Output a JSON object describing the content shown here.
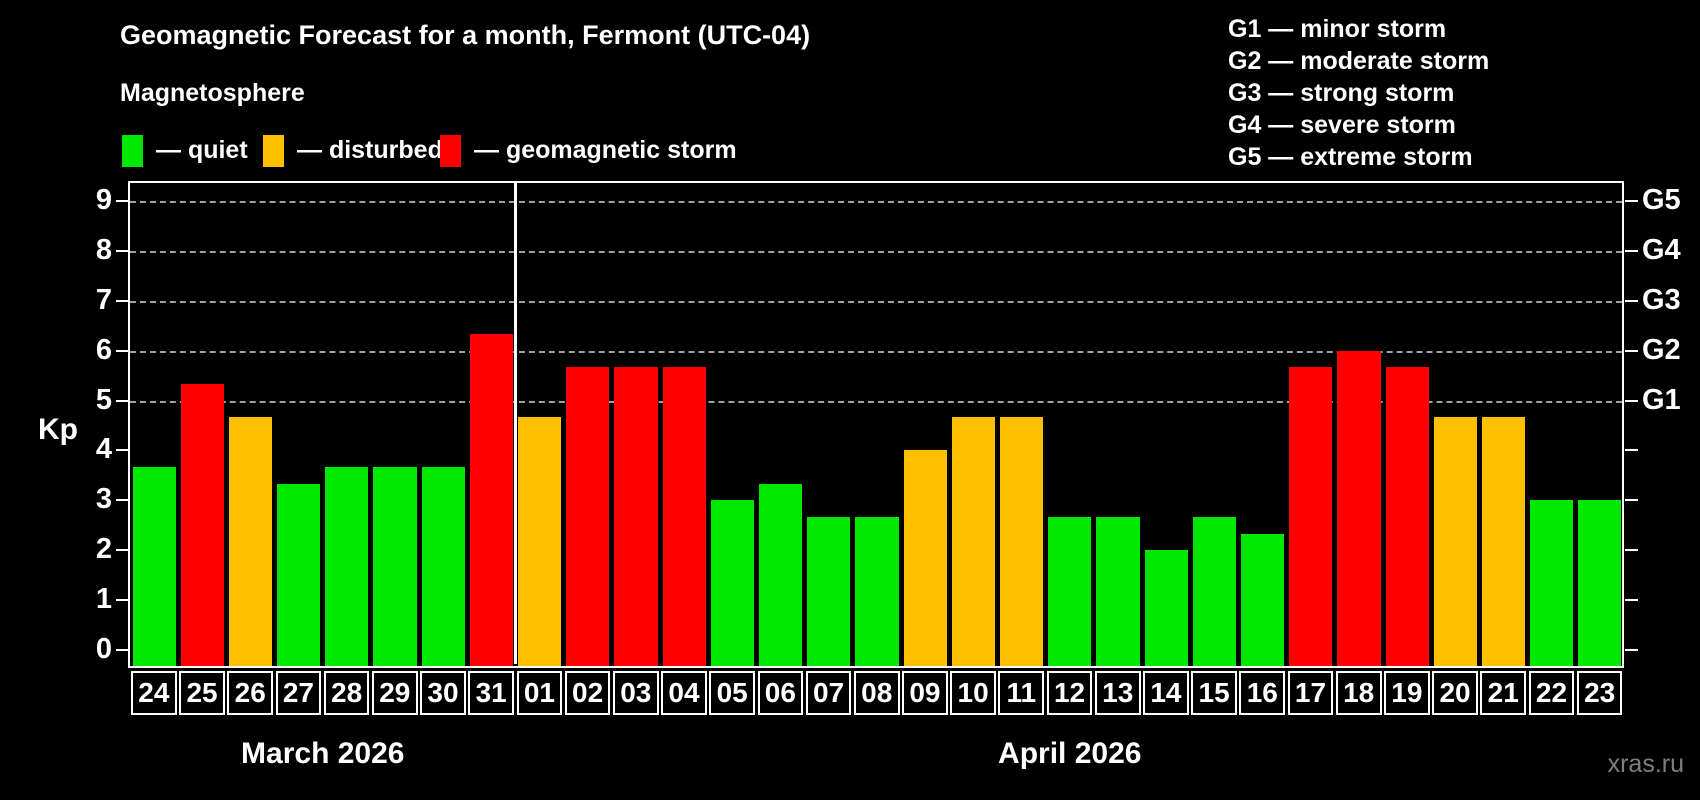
{
  "title": "Geomagnetic Forecast for a month, Fermont (UTC-04)",
  "subtitle": "Magnetosphere",
  "legend": [
    {
      "name": "quiet",
      "label": "— quiet",
      "color": "#00e800"
    },
    {
      "name": "disturbed",
      "label": "— disturbed",
      "color": "#ffc000"
    },
    {
      "name": "storm",
      "label": "— geomagnetic storm",
      "color": "#ff0000"
    }
  ],
  "g_scale_legend": [
    "G1 — minor storm",
    "G2 — moderate storm",
    "G3 — strong storm",
    "G4 — severe storm",
    "G5 — extreme storm"
  ],
  "watermark": "xras.ru",
  "chart_data": {
    "type": "bar",
    "ylabel": "Kp",
    "ylim": [
      0,
      9
    ],
    "yticks": [
      0,
      1,
      2,
      3,
      4,
      5,
      6,
      7,
      8,
      9
    ],
    "gridline_levels": [
      5,
      6,
      7,
      8,
      9
    ],
    "right_axis_labels": [
      {
        "kp": 5,
        "label": "G1"
      },
      {
        "kp": 6,
        "label": "G2"
      },
      {
        "kp": 7,
        "label": "G3"
      },
      {
        "kp": 8,
        "label": "G4"
      },
      {
        "kp": 9,
        "label": "G5"
      }
    ],
    "level_colors": {
      "quiet": "#00e800",
      "disturbed": "#ffc000",
      "storm": "#ff0000"
    },
    "months": [
      {
        "label": "March 2026",
        "days": 8
      },
      {
        "label": "April 2026",
        "days": 23
      }
    ],
    "bars": [
      {
        "day": "24",
        "kp": 3.67,
        "level": "quiet"
      },
      {
        "day": "25",
        "kp": 5.33,
        "level": "storm"
      },
      {
        "day": "26",
        "kp": 4.67,
        "level": "disturbed"
      },
      {
        "day": "27",
        "kp": 3.33,
        "level": "quiet"
      },
      {
        "day": "28",
        "kp": 3.67,
        "level": "quiet"
      },
      {
        "day": "29",
        "kp": 3.67,
        "level": "quiet"
      },
      {
        "day": "30",
        "kp": 3.67,
        "level": "quiet"
      },
      {
        "day": "31",
        "kp": 6.33,
        "level": "storm"
      },
      {
        "day": "01",
        "kp": 4.67,
        "level": "disturbed"
      },
      {
        "day": "02",
        "kp": 5.67,
        "level": "storm"
      },
      {
        "day": "03",
        "kp": 5.67,
        "level": "storm"
      },
      {
        "day": "04",
        "kp": 5.67,
        "level": "storm"
      },
      {
        "day": "05",
        "kp": 3.0,
        "level": "quiet"
      },
      {
        "day": "06",
        "kp": 3.33,
        "level": "quiet"
      },
      {
        "day": "07",
        "kp": 2.67,
        "level": "quiet"
      },
      {
        "day": "08",
        "kp": 2.67,
        "level": "quiet"
      },
      {
        "day": "09",
        "kp": 4.0,
        "level": "disturbed"
      },
      {
        "day": "10",
        "kp": 4.67,
        "level": "disturbed"
      },
      {
        "day": "11",
        "kp": 4.67,
        "level": "disturbed"
      },
      {
        "day": "12",
        "kp": 2.67,
        "level": "quiet"
      },
      {
        "day": "13",
        "kp": 2.67,
        "level": "quiet"
      },
      {
        "day": "14",
        "kp": 2.0,
        "level": "quiet"
      },
      {
        "day": "15",
        "kp": 2.67,
        "level": "quiet"
      },
      {
        "day": "16",
        "kp": 2.33,
        "level": "quiet"
      },
      {
        "day": "17",
        "kp": 5.67,
        "level": "storm"
      },
      {
        "day": "18",
        "kp": 6.0,
        "level": "storm"
      },
      {
        "day": "19",
        "kp": 5.67,
        "level": "storm"
      },
      {
        "day": "20",
        "kp": 4.67,
        "level": "disturbed"
      },
      {
        "day": "21",
        "kp": 4.67,
        "level": "disturbed"
      },
      {
        "day": "22",
        "kp": 3.0,
        "level": "quiet"
      },
      {
        "day": "23",
        "kp": 3.0,
        "level": "quiet"
      }
    ]
  }
}
